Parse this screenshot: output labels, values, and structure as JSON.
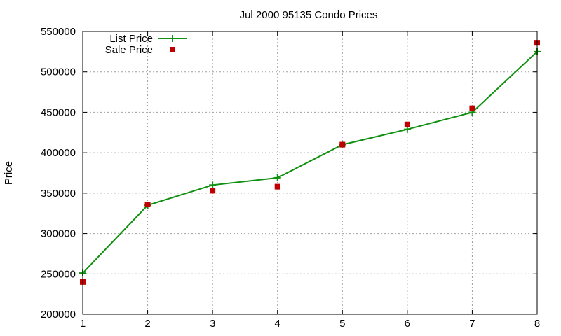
{
  "chart_data": {
    "type": "line",
    "title": "Jul 2000 95135 Condo Prices",
    "xlabel": "",
    "ylabel": "Price",
    "x": [
      1,
      2,
      3,
      4,
      5,
      6,
      7,
      8
    ],
    "xticks": [
      "1",
      "2",
      "3",
      "4",
      "5",
      "6",
      "7",
      "8"
    ],
    "yticks": [
      "200000",
      "250000",
      "300000",
      "350000",
      "400000",
      "450000",
      "500000",
      "550000"
    ],
    "xlim": [
      1,
      8
    ],
    "ylim": [
      200000,
      550000
    ],
    "grid": true,
    "legend_position": "top-left",
    "series": [
      {
        "name": "List Price",
        "style": "line-with-plus-markers",
        "color": "#109010",
        "values": [
          251000,
          335000,
          360000,
          369000,
          410000,
          429000,
          450000,
          525000
        ]
      },
      {
        "name": "Sale Price",
        "style": "square-markers",
        "color": "#c00000",
        "values": [
          240000,
          336000,
          353000,
          358000,
          410000,
          435000,
          455000,
          536000
        ]
      }
    ]
  }
}
